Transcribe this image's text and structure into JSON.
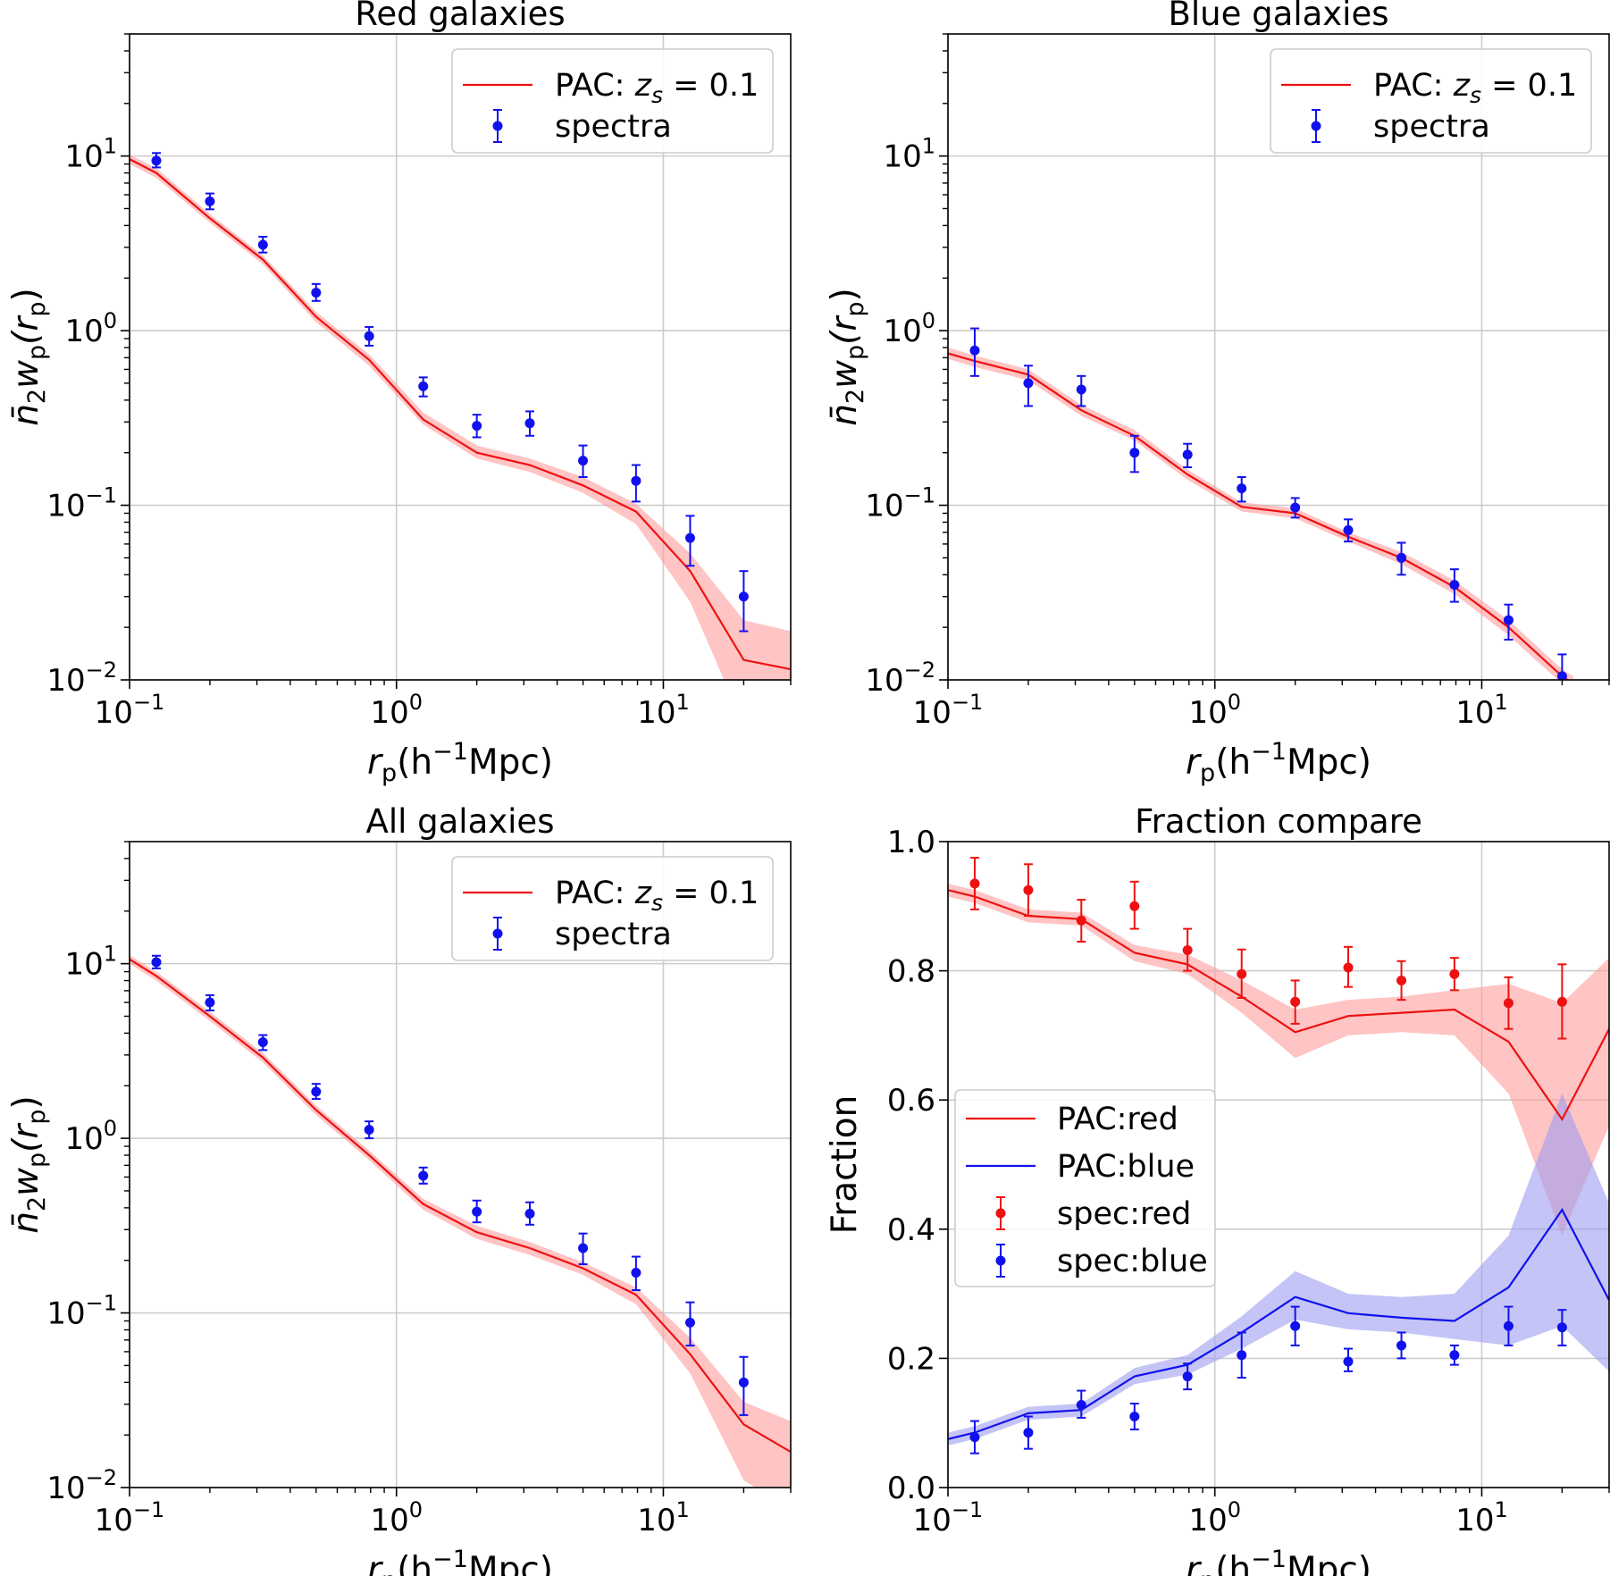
{
  "colors": {
    "red": "#ee1111",
    "blue": "#1111ee",
    "red_band": "#ff9c9c",
    "blue_band": "#9c9cf0",
    "grid": "#cccccc"
  },
  "common": {
    "x_ticks": [
      {
        "value": 0.1,
        "base": "10",
        "exp": "−1"
      },
      {
        "value": 1,
        "base": "10",
        "exp": "0"
      },
      {
        "value": 10,
        "base": "10",
        "exp": "1"
      }
    ],
    "y_log_ticks": [
      {
        "value": 10,
        "base": "10",
        "exp": "1"
      },
      {
        "value": 1,
        "base": "10",
        "exp": "0"
      },
      {
        "value": 0.1,
        "base": "10",
        "exp": "−1"
      },
      {
        "value": 0.01,
        "base": "10",
        "exp": "−2"
      }
    ],
    "y_lin_ticks": [
      "0.0",
      "0.2",
      "0.4",
      "0.6",
      "0.8",
      "1.0"
    ],
    "xlabel": {
      "main": "r",
      "sub": "p",
      "paren": "(h",
      "sup": "−1",
      "unit": "Mpc)"
    },
    "ylabel": {
      "main": "n̄",
      "sub2": "2",
      "w": "w",
      "subp": "p",
      "paren": "(r",
      "subp2": "p",
      "close": ")"
    },
    "legend_pac": {
      "prefix": "PAC: ",
      "z": "z",
      "zsub": "s",
      "eq": " = 0.1"
    },
    "legend_spectra": "spectra"
  },
  "chart_data": [
    {
      "id": "red",
      "type": "line",
      "title": "Red galaxies",
      "xlabel": "r_p(h^-1 Mpc)",
      "ylabel": "n̄_2 w_p(r_p)",
      "xscale": "log",
      "yscale": "log",
      "xlim": [
        0.1,
        30
      ],
      "ylim": [
        0.01,
        50
      ],
      "legend_position": "top-right",
      "pac": {
        "x": [
          0.1,
          0.126,
          0.2,
          0.316,
          0.5,
          0.79,
          1.26,
          2.0,
          3.16,
          5.0,
          7.9,
          12.6,
          20,
          30
        ],
        "y": [
          9.6,
          8.0,
          4.4,
          2.55,
          1.2,
          0.68,
          0.31,
          0.2,
          0.17,
          0.13,
          0.092,
          0.042,
          0.013,
          0.0115
        ],
        "lo": [
          9.0,
          7.5,
          4.15,
          2.4,
          1.12,
          0.63,
          0.29,
          0.185,
          0.155,
          0.118,
          0.078,
          0.028,
          0.0055,
          0.0065
        ],
        "hi": [
          10.2,
          8.5,
          4.65,
          2.7,
          1.28,
          0.73,
          0.34,
          0.22,
          0.185,
          0.145,
          0.102,
          0.053,
          0.022,
          0.019
        ]
      },
      "spectra": {
        "x": [
          0.126,
          0.2,
          0.316,
          0.5,
          0.79,
          1.26,
          2.0,
          3.16,
          5.0,
          7.9,
          12.6,
          20
        ],
        "y": [
          9.4,
          5.5,
          3.1,
          1.65,
          0.93,
          0.48,
          0.285,
          0.295,
          0.18,
          0.138,
          0.065,
          0.03
        ],
        "yerr_lo": [
          8.6,
          4.95,
          2.8,
          1.48,
          0.82,
          0.42,
          0.245,
          0.25,
          0.145,
          0.105,
          0.045,
          0.019
        ],
        "yerr_hi": [
          10.4,
          6.1,
          3.45,
          1.85,
          1.05,
          0.54,
          0.33,
          0.345,
          0.22,
          0.17,
          0.087,
          0.042
        ]
      }
    },
    {
      "id": "blue",
      "type": "line",
      "title": "Blue galaxies",
      "xlabel": "r_p(h^-1 Mpc)",
      "ylabel": "n̄_2 w_p(r_p)",
      "xscale": "log",
      "yscale": "log",
      "xlim": [
        0.1,
        30
      ],
      "ylim": [
        0.01,
        50
      ],
      "legend_position": "top-right",
      "pac": {
        "x": [
          0.1,
          0.126,
          0.2,
          0.316,
          0.5,
          0.79,
          1.26,
          2.0,
          3.16,
          5.0,
          7.9,
          12.6,
          20,
          22
        ],
        "y": [
          0.74,
          0.67,
          0.56,
          0.35,
          0.25,
          0.15,
          0.098,
          0.09,
          0.066,
          0.05,
          0.034,
          0.02,
          0.0105,
          0.0095
        ],
        "lo": [
          0.69,
          0.62,
          0.52,
          0.325,
          0.235,
          0.14,
          0.092,
          0.084,
          0.062,
          0.046,
          0.031,
          0.018,
          0.0095,
          0.0085
        ],
        "hi": [
          0.8,
          0.72,
          0.6,
          0.375,
          0.27,
          0.16,
          0.104,
          0.096,
          0.07,
          0.054,
          0.037,
          0.022,
          0.0115,
          0.0105
        ]
      },
      "spectra": {
        "x": [
          0.126,
          0.2,
          0.316,
          0.5,
          0.79,
          1.26,
          2.0,
          3.16,
          5.0,
          7.9,
          12.6,
          20
        ],
        "y": [
          0.77,
          0.5,
          0.46,
          0.2,
          0.195,
          0.125,
          0.097,
          0.072,
          0.05,
          0.035,
          0.022,
          0.0105
        ],
        "yerr_lo": [
          0.55,
          0.37,
          0.37,
          0.155,
          0.165,
          0.105,
          0.085,
          0.062,
          0.04,
          0.028,
          0.017,
          0.0075
        ],
        "yerr_hi": [
          1.03,
          0.63,
          0.55,
          0.25,
          0.225,
          0.145,
          0.11,
          0.083,
          0.061,
          0.043,
          0.027,
          0.014
        ]
      }
    },
    {
      "id": "all",
      "type": "line",
      "title": "All galaxies",
      "xlabel": "r_p(h^-1 Mpc)",
      "ylabel": "n̄_2 w_p(r_p)",
      "xscale": "log",
      "yscale": "log",
      "xlim": [
        0.1,
        30
      ],
      "ylim": [
        0.01,
        50
      ],
      "legend_position": "top-right",
      "pac": {
        "x": [
          0.1,
          0.126,
          0.2,
          0.316,
          0.5,
          0.79,
          1.26,
          2.0,
          3.16,
          5.0,
          7.9,
          12.6,
          20,
          30
        ],
        "y": [
          10.6,
          8.5,
          5.0,
          2.9,
          1.45,
          0.8,
          0.42,
          0.29,
          0.235,
          0.18,
          0.127,
          0.058,
          0.023,
          0.016
        ],
        "lo": [
          10.0,
          8.0,
          4.7,
          2.72,
          1.36,
          0.75,
          0.39,
          0.265,
          0.215,
          0.165,
          0.112,
          0.045,
          0.011,
          0.0075
        ],
        "hi": [
          11.2,
          9.0,
          5.3,
          3.08,
          1.54,
          0.85,
          0.45,
          0.315,
          0.255,
          0.195,
          0.14,
          0.072,
          0.031,
          0.024
        ]
      },
      "spectra": {
        "x": [
          0.126,
          0.2,
          0.316,
          0.5,
          0.79,
          1.26,
          2.0,
          3.16,
          5.0,
          7.9,
          12.6,
          20
        ],
        "y": [
          10.2,
          6.0,
          3.55,
          1.85,
          1.12,
          0.61,
          0.38,
          0.37,
          0.235,
          0.17,
          0.088,
          0.04
        ],
        "yerr_lo": [
          9.4,
          5.4,
          3.2,
          1.68,
          1.0,
          0.55,
          0.33,
          0.32,
          0.19,
          0.135,
          0.065,
          0.026
        ],
        "yerr_hi": [
          11.1,
          6.6,
          3.9,
          2.05,
          1.25,
          0.68,
          0.44,
          0.43,
          0.285,
          0.21,
          0.115,
          0.056
        ]
      }
    },
    {
      "id": "fraction",
      "type": "line",
      "title": "Fraction compare",
      "xlabel": "r_p(h^-1 Mpc)",
      "ylabel": "Fraction",
      "xscale": "log",
      "yscale": "linear",
      "xlim": [
        0.1,
        30
      ],
      "ylim": [
        0.0,
        1.0
      ],
      "legend_position": "center-left",
      "legend": [
        "PAC:red",
        "PAC:blue",
        "spec:red",
        "spec:blue"
      ],
      "pac_red": {
        "x": [
          0.1,
          0.126,
          0.2,
          0.316,
          0.5,
          0.79,
          1.26,
          2.0,
          3.16,
          5.0,
          7.9,
          12.6,
          20,
          30
        ],
        "y": [
          0.925,
          0.915,
          0.885,
          0.88,
          0.828,
          0.81,
          0.76,
          0.705,
          0.73,
          0.735,
          0.74,
          0.69,
          0.57,
          0.71
        ],
        "lo": [
          0.915,
          0.905,
          0.875,
          0.87,
          0.815,
          0.795,
          0.735,
          0.665,
          0.7,
          0.705,
          0.7,
          0.61,
          0.39,
          0.56
        ],
        "hi": [
          0.935,
          0.925,
          0.895,
          0.89,
          0.84,
          0.825,
          0.785,
          0.74,
          0.755,
          0.76,
          0.77,
          0.78,
          0.75,
          0.82
        ]
      },
      "pac_blue": {
        "x": [
          0.1,
          0.126,
          0.2,
          0.316,
          0.5,
          0.79,
          1.26,
          2.0,
          3.16,
          5.0,
          7.9,
          12.6,
          20,
          30
        ],
        "y": [
          0.075,
          0.085,
          0.115,
          0.12,
          0.172,
          0.19,
          0.24,
          0.295,
          0.27,
          0.263,
          0.258,
          0.31,
          0.43,
          0.29
        ],
        "lo": [
          0.065,
          0.075,
          0.105,
          0.11,
          0.16,
          0.175,
          0.215,
          0.26,
          0.245,
          0.24,
          0.23,
          0.22,
          0.25,
          0.18
        ],
        "hi": [
          0.085,
          0.095,
          0.125,
          0.13,
          0.185,
          0.205,
          0.265,
          0.335,
          0.3,
          0.295,
          0.3,
          0.39,
          0.61,
          0.44
        ]
      },
      "spec_red": {
        "x": [
          0.126,
          0.2,
          0.316,
          0.5,
          0.79,
          1.26,
          2.0,
          3.16,
          5.0,
          7.9,
          12.6,
          20
        ],
        "y": [
          0.935,
          0.925,
          0.878,
          0.9,
          0.832,
          0.795,
          0.752,
          0.805,
          0.785,
          0.795,
          0.75,
          0.752
        ],
        "yerr_lo": [
          0.895,
          0.885,
          0.845,
          0.865,
          0.8,
          0.758,
          0.718,
          0.775,
          0.755,
          0.77,
          0.71,
          0.695
        ],
        "yerr_hi": [
          0.975,
          0.965,
          0.91,
          0.938,
          0.865,
          0.833,
          0.785,
          0.837,
          0.815,
          0.82,
          0.79,
          0.81
        ]
      },
      "spec_blue": {
        "x": [
          0.126,
          0.2,
          0.316,
          0.5,
          0.79,
          1.26,
          2.0,
          3.16,
          5.0,
          7.9,
          12.6,
          20
        ],
        "y": [
          0.078,
          0.085,
          0.128,
          0.11,
          0.172,
          0.205,
          0.25,
          0.195,
          0.22,
          0.205,
          0.25,
          0.248
        ],
        "yerr_lo": [
          0.053,
          0.06,
          0.108,
          0.09,
          0.152,
          0.17,
          0.22,
          0.18,
          0.2,
          0.19,
          0.22,
          0.22
        ],
        "yerr_hi": [
          0.103,
          0.11,
          0.15,
          0.13,
          0.192,
          0.24,
          0.28,
          0.215,
          0.24,
          0.22,
          0.28,
          0.275
        ]
      }
    }
  ]
}
